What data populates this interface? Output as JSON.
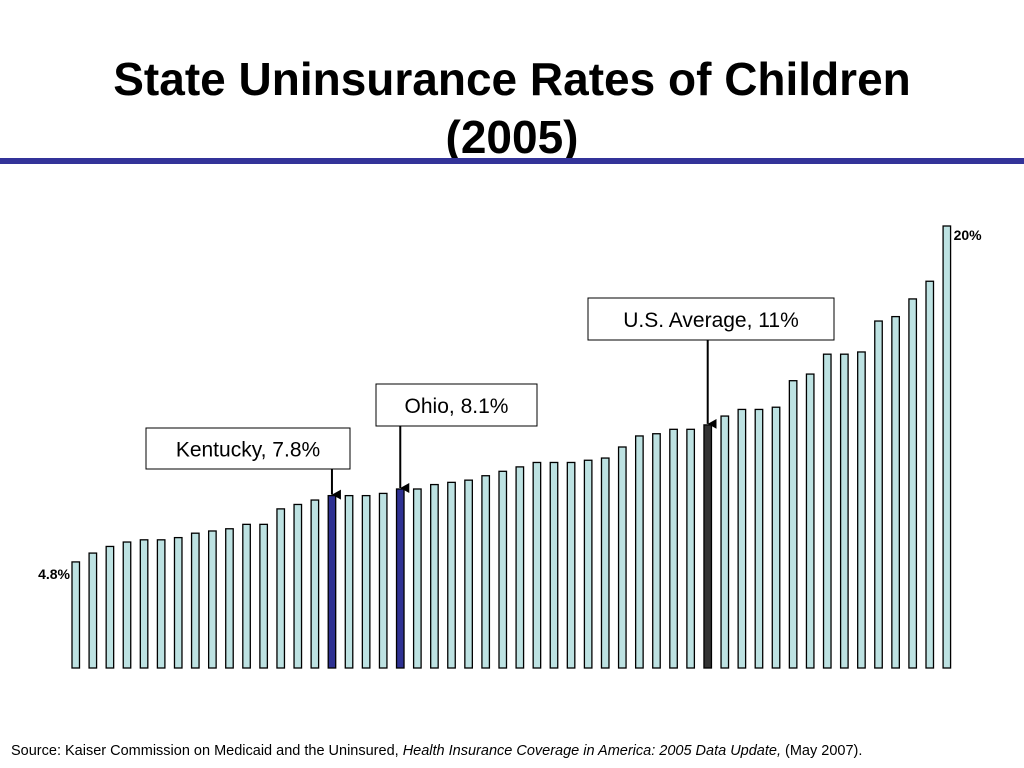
{
  "slide": {
    "title_line1": "State Uninsurance Rates of Children",
    "title_line2": "(2005)"
  },
  "source": {
    "prefix": "Source: Kaiser Commission on Medicaid and the Uninsured, ",
    "publication": "Health Insurance Coverage in America: 2005 Data Update,",
    "suffix": " (May 2007)."
  },
  "colors": {
    "rule": "#333399",
    "bar_fill": "#bde2e2",
    "bar_outline": "#000000",
    "highlight_state": "#2e3192",
    "us_average": "#333333"
  },
  "chart_data": {
    "type": "bar",
    "ylim": [
      0,
      20
    ],
    "value_unit": "%",
    "values": [
      4.8,
      5.2,
      5.5,
      5.7,
      5.8,
      5.8,
      5.9,
      6.1,
      6.2,
      6.3,
      6.5,
      6.5,
      7.2,
      7.4,
      7.6,
      7.8,
      7.8,
      7.8,
      7.9,
      8.1,
      8.1,
      8.3,
      8.4,
      8.5,
      8.7,
      8.9,
      9.1,
      9.3,
      9.3,
      9.3,
      9.4,
      9.5,
      10.0,
      10.5,
      10.6,
      10.8,
      10.8,
      11.0,
      11.4,
      11.7,
      11.7,
      11.8,
      13.0,
      13.3,
      14.2,
      14.2,
      14.3,
      15.7,
      15.9,
      16.7,
      17.5,
      20.0
    ],
    "highlight": {
      "kentucky": 15,
      "ohio": 19,
      "us_average": 37
    },
    "value_labels": [
      {
        "index": 0,
        "text": "4.8%"
      },
      {
        "index": 51,
        "text": "20%"
      }
    ],
    "callouts": [
      {
        "bar": 15,
        "text": "Kentucky, 7.8%"
      },
      {
        "bar": 19,
        "text": "Ohio, 8.1%"
      },
      {
        "bar": 37,
        "text": "U.S. Average, 11%"
      }
    ]
  }
}
